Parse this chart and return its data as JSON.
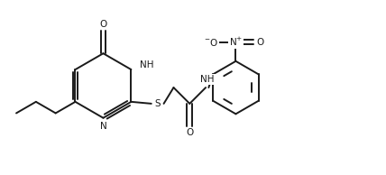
{
  "bg_color": "#ffffff",
  "line_color": "#1a1a1a",
  "lw": 1.4,
  "font_size": 7.5,
  "fig_width": 4.28,
  "fig_height": 1.94,
  "xlim": [
    -0.5,
    10.0
  ],
  "ylim": [
    0.2,
    4.7
  ]
}
